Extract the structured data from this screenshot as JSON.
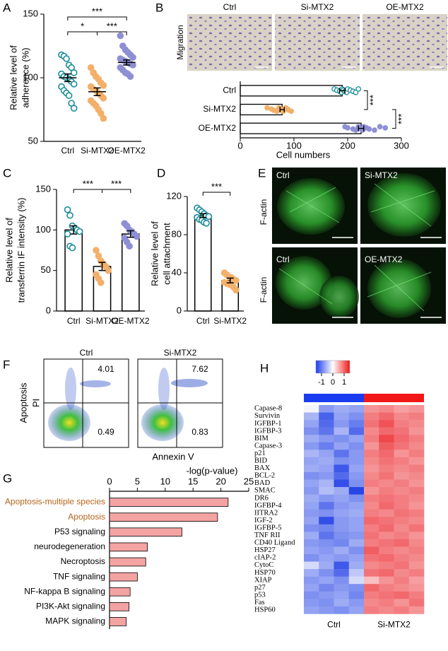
{
  "panel_letters": [
    "A",
    "B",
    "C",
    "D",
    "E",
    "F",
    "G",
    "H"
  ],
  "migration_images": {
    "label": "Migration",
    "titles": [
      "Ctrl",
      "Si-MTX2",
      "OE-MTX2"
    ]
  },
  "factin_images": {
    "label": "F-actin",
    "titles": [
      "Ctrl",
      "Si-MTX2",
      "Ctrl",
      "OE-MTX2"
    ]
  },
  "flow": {
    "outer_label": "Apoptosis",
    "y_label": "PI",
    "x_label": "Annexin V",
    "plots": [
      {
        "title": "Ctrl",
        "upper_right": 4.01,
        "lower_right": 0.49
      },
      {
        "title": "Si-MTX2",
        "upper_right": 7.62,
        "lower_right": 0.83
      }
    ]
  },
  "chart_data": [
    {
      "type": "dot",
      "ylabel": [
        "Relative level of",
        "adherence (%)"
      ],
      "categories": [
        "Ctrl",
        "Si-MTX2",
        "OE-MTX2"
      ],
      "colors": [
        "#1a8c99",
        "#f2b06a",
        "#8e8fd4"
      ],
      "points": [
        [
          118,
          117,
          115,
          110,
          108,
          104,
          103,
          101,
          100,
          99,
          97,
          95,
          93,
          90,
          88,
          86,
          80,
          76
        ],
        [
          108,
          104,
          101,
          99,
          96,
          94,
          93,
          91,
          90,
          88,
          86,
          84,
          82,
          80,
          78,
          75,
          72,
          68
        ],
        [
          133,
          125,
          122,
          120,
          118,
          116,
          115,
          114,
          113,
          112,
          111,
          110,
          108,
          106,
          104,
          103,
          101
        ]
      ],
      "values": [
        100,
        89,
        112
      ],
      "errors": [
        3,
        3,
        2
      ],
      "ylim": [
        50,
        150
      ],
      "yticks": [
        50,
        100,
        150
      ],
      "annotations": [
        "***",
        "*",
        "***"
      ]
    },
    {
      "type": "hbar",
      "xlabel": "Cell numbers",
      "categories": [
        "Ctrl",
        "Si-MTX2",
        "OE-MTX2"
      ],
      "colors": [
        "#1a8c99",
        "#f2b06a",
        "#8e8fd4"
      ],
      "points": [
        [
          175,
          180,
          185,
          188,
          190,
          192,
          195,
          198,
          200,
          205,
          210,
          215,
          220
        ],
        [
          50,
          58,
          62,
          68,
          72,
          75,
          78,
          80,
          85,
          88,
          90,
          95
        ],
        [
          195,
          200,
          210,
          215,
          220,
          222,
          225,
          228,
          230,
          235,
          240,
          250,
          260,
          270
        ]
      ],
      "values": [
        190,
        78,
        225
      ],
      "errors": [
        5,
        4,
        5
      ],
      "xlim": [
        0,
        300
      ],
      "xticks": [
        0,
        100,
        200,
        300
      ],
      "annotations": [
        "***",
        "***"
      ]
    },
    {
      "type": "bar",
      "ylabel": [
        "Relative level of",
        "transferrin IF intensity (%)"
      ],
      "categories": [
        "Ctrl",
        "Si-MTX2",
        "OE-MTX2"
      ],
      "colors": [
        "#1a8c99",
        "#f2b06a",
        "#8e8fd4"
      ],
      "points": [
        [
          125,
          118,
          105,
          102,
          100,
          98,
          95,
          80,
          78
        ],
        [
          75,
          68,
          62,
          58,
          55,
          50,
          45,
          40,
          35
        ],
        [
          108,
          105,
          100,
          98,
          95,
          92,
          90,
          85,
          80
        ]
      ],
      "values": [
        100,
        55,
        95
      ],
      "errors": [
        5,
        5,
        4
      ],
      "ylim": [
        0,
        150
      ],
      "yticks": [
        0,
        50,
        100,
        150
      ],
      "annotations": [
        "***",
        "***"
      ]
    },
    {
      "type": "bar",
      "ylabel": [
        "Relative level of",
        "cell attachment"
      ],
      "categories": [
        "Ctrl",
        "Si-MTX2"
      ],
      "colors": [
        "#1a8c99",
        "#f2b06a"
      ],
      "points": [
        [
          108,
          106,
          104,
          102,
          100,
          99,
          98,
          96,
          95,
          93,
          92
        ],
        [
          40,
          38,
          36,
          35,
          33,
          32,
          30,
          29,
          28,
          27,
          25,
          22
        ]
      ],
      "values": [
        100,
        32
      ],
      "errors": [
        2,
        2.5
      ],
      "ylim": [
        0,
        120
      ],
      "yticks": [
        0,
        40,
        80,
        120
      ],
      "annotations": [
        "***"
      ]
    },
    {
      "type": "hbar",
      "title": "-log(p-value)",
      "categories": [
        "Apoptosis-multiple species",
        "Apoptosis",
        "P53 signaling",
        "neurodegeneration",
        "Necroptosis",
        "TNF signaling",
        "NF-kappa B signaling",
        "PI3K-Akt signaling",
        "MAPK signaling"
      ],
      "values": [
        21.3,
        19.4,
        13,
        6.8,
        6.5,
        5,
        3.7,
        3.5,
        3
      ],
      "color": "#f4a3a3",
      "label_colors": [
        "#b5651d",
        "#b5651d",
        "#000000",
        "#000000",
        "#000000",
        "#000000",
        "#000000",
        "#000000",
        "#000000"
      ],
      "xlim": [
        0,
        25
      ],
      "xticks": [
        0,
        5,
        10,
        15,
        20,
        25
      ]
    },
    {
      "type": "heatmap",
      "rows": [
        "Capase-8",
        "Survivin",
        "IGFBP-1",
        "IGFBP-3",
        "BIM",
        "Capase-3",
        "p21",
        "BID",
        "BAX",
        "BCL-2",
        "BAD",
        "SMAC",
        "DR6",
        "IGFBP-4",
        "IITRA2",
        "IGF-2",
        "IGFBP-5",
        "TNF RII",
        "CD40 Ligand",
        "HSP27",
        "cIAP-2",
        "CytoC",
        "HSP70",
        "XIAP",
        "p27",
        "p53",
        "Fas",
        "HSP60"
      ],
      "groups": [
        "Ctrl",
        "Si-MTX2"
      ],
      "group_colors": [
        "#1a3cf0",
        "#f01818"
      ],
      "zlim": [
        -1,
        1
      ],
      "zticks": [
        -1,
        0,
        1
      ],
      "values": [
        [
          -0.05,
          -0.55,
          -0.45,
          -0.5,
          0.5,
          0.55,
          0.45,
          0.5
        ],
        [
          -0.4,
          -0.85,
          -0.5,
          -0.6,
          0.6,
          0.7,
          0.55,
          0.6
        ],
        [
          -0.5,
          -0.8,
          -0.55,
          -0.7,
          0.65,
          0.8,
          0.6,
          0.55
        ],
        [
          -0.6,
          -0.75,
          -0.4,
          -0.8,
          0.55,
          0.7,
          0.65,
          0.5
        ],
        [
          -0.45,
          -0.55,
          -0.6,
          -0.5,
          0.6,
          0.85,
          0.7,
          0.6
        ],
        [
          -0.55,
          -0.7,
          -0.5,
          -0.6,
          0.5,
          0.75,
          0.65,
          0.55
        ],
        [
          -0.4,
          -0.5,
          -0.75,
          -0.55,
          0.6,
          0.7,
          0.5,
          0.6
        ],
        [
          -0.5,
          -0.45,
          -0.6,
          -0.55,
          0.55,
          0.65,
          0.6,
          0.5
        ],
        [
          -0.45,
          -0.5,
          -0.9,
          -0.5,
          0.5,
          0.6,
          0.55,
          0.6
        ],
        [
          -0.6,
          -0.55,
          -0.8,
          -0.55,
          0.55,
          0.65,
          0.5,
          0.55
        ],
        [
          -0.5,
          -0.4,
          -0.95,
          -0.6,
          0.6,
          0.55,
          0.6,
          0.5
        ],
        [
          -0.55,
          -0.35,
          -0.45,
          -1,
          0.5,
          0.6,
          0.55,
          0.6
        ],
        [
          -0.45,
          -0.55,
          -0.5,
          -0.6,
          0.6,
          0.65,
          0.6,
          0.55
        ],
        [
          -0.5,
          -0.75,
          -0.55,
          -0.5,
          0.55,
          0.7,
          0.6,
          0.5
        ],
        [
          -0.55,
          -0.6,
          -0.5,
          -0.45,
          0.6,
          0.55,
          0.65,
          0.6
        ],
        [
          -0.5,
          -0.95,
          -0.55,
          -0.5,
          0.7,
          0.65,
          0.6,
          0.55
        ],
        [
          -0.6,
          -0.65,
          -0.55,
          -0.5,
          0.6,
          0.7,
          0.55,
          0.65
        ],
        [
          -0.45,
          -0.75,
          -0.6,
          -0.55,
          0.65,
          0.55,
          0.6,
          0.5
        ],
        [
          -0.55,
          -0.6,
          -0.65,
          -0.45,
          0.6,
          0.65,
          0.7,
          0.55
        ],
        [
          -0.5,
          -0.55,
          -0.45,
          -0.6,
          0.75,
          0.6,
          0.55,
          0.6
        ],
        [
          -0.6,
          -0.5,
          -0.55,
          -0.5,
          0.65,
          0.7,
          0.6,
          0.55
        ],
        [
          -0.2,
          -0.45,
          -0.9,
          -0.45,
          0.55,
          0.6,
          0.65,
          0.5
        ],
        [
          -0.45,
          -0.6,
          -0.8,
          -0.3,
          0.65,
          0.7,
          0.55,
          0.6
        ],
        [
          -0.55,
          -0.5,
          -0.6,
          -0.2,
          0.3,
          0.5,
          0.6,
          0.45
        ],
        [
          -0.5,
          -0.65,
          -0.55,
          -0.6,
          0.7,
          0.6,
          0.55,
          0.5
        ],
        [
          -0.6,
          -0.55,
          -0.5,
          -0.65,
          0.6,
          0.65,
          0.7,
          0.6
        ],
        [
          -0.55,
          -0.6,
          -0.45,
          -0.55,
          0.55,
          0.6,
          0.5,
          0.65
        ],
        [
          -0.5,
          -0.55,
          -0.6,
          -0.5,
          0.6,
          0.55,
          0.6,
          0.5
        ]
      ]
    }
  ]
}
